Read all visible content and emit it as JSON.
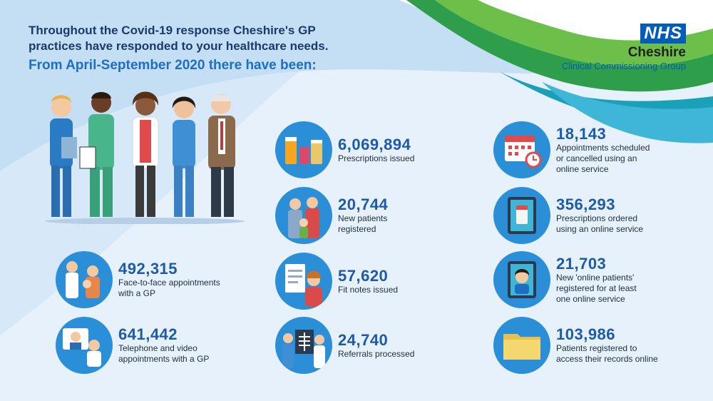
{
  "intro": {
    "line1": "Throughout the Covid-19 response Cheshire's GP",
    "line2": "practices have responded to your healthcare needs.",
    "subheading": "From April-September 2020 there have been:"
  },
  "logo": {
    "badge": "NHS",
    "org": "Cheshire",
    "sub": "Clinical Commissioning Group"
  },
  "colors": {
    "accent_blue": "#1d6fc4",
    "nhs_blue": "#005eb8",
    "circle_blue": "#2a8fd6",
    "wave_green": "#2e9e4b",
    "wave_teal": "#1aa0b8"
  },
  "stats": {
    "face_to_face": {
      "number": "492,315",
      "line1": "Face-to-face appointments",
      "line2": "with a GP",
      "icon": "gp-patient-icon"
    },
    "telephone": {
      "number": "641,442",
      "line1": "Telephone and video",
      "line2": "appointments with a GP",
      "icon": "video-call-icon"
    },
    "prescriptions": {
      "number": "6,069,894",
      "line1": "Prescriptions issued",
      "icon": "medicine-bottles-icon"
    },
    "new_patients": {
      "number": "20,744",
      "line1": "New patients",
      "line2": "registered",
      "icon": "family-icon"
    },
    "fit_notes": {
      "number": "57,620",
      "line1": "Fit notes issued",
      "icon": "clipboard-icon"
    },
    "referrals": {
      "number": "24,740",
      "line1": "Referrals processed",
      "icon": "xray-icon"
    },
    "appointments_online": {
      "number": "18,143",
      "line1": "Appointments scheduled",
      "line2": "or cancelled using an",
      "line3": "online service",
      "icon": "calendar-icon"
    },
    "prescriptions_online": {
      "number": "356,293",
      "line1": "Prescriptions ordered",
      "line2": "using an online service",
      "icon": "tablet-pill-icon"
    },
    "online_patients": {
      "number": "21,703",
      "line1": "New 'online patients'",
      "line2": "registered for at least",
      "line3": "one online service",
      "icon": "tablet-user-icon"
    },
    "records_online": {
      "number": "103,986",
      "line1": "Patients registered to",
      "line2": "access their records online",
      "icon": "folder-icon"
    }
  }
}
